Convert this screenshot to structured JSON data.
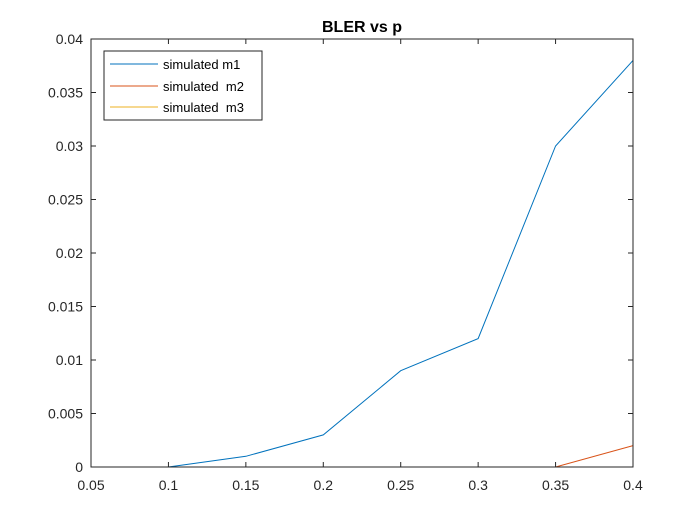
{
  "chart_data": {
    "type": "line",
    "title": "BLER vs p",
    "xlabel": "",
    "ylabel": "",
    "xlim": [
      0.05,
      0.4
    ],
    "ylim": [
      0,
      0.04
    ],
    "x": [
      0.1,
      0.15,
      0.2,
      0.25,
      0.3,
      0.35,
      0.4
    ],
    "series": [
      {
        "name": "simulated m1",
        "color": "#0072BD",
        "values": [
          0,
          0.001,
          0.003,
          0.009,
          0.012,
          0.03,
          0.038
        ]
      },
      {
        "name": "simulated  m2",
        "color": "#D95319",
        "values": [
          0,
          0,
          0,
          0,
          0,
          0,
          0.002
        ]
      },
      {
        "name": "simulated  m3",
        "color": "#EDB120",
        "values": [
          0,
          0,
          0,
          0,
          0,
          0,
          0
        ]
      }
    ],
    "xticks": [
      "0.05",
      "0.1",
      "0.15",
      "0.2",
      "0.25",
      "0.3",
      "0.35",
      "0.4"
    ],
    "yticks": [
      "0",
      "0.005",
      "0.01",
      "0.015",
      "0.02",
      "0.025",
      "0.03",
      "0.035",
      "0.04"
    ],
    "grid": false,
    "legend_position": "top-left"
  }
}
